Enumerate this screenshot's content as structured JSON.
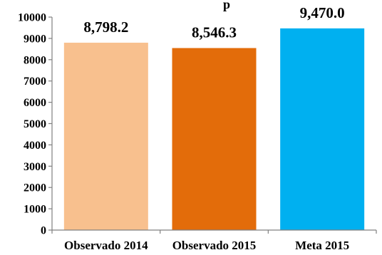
{
  "chart_data": {
    "type": "bar",
    "title": "p",
    "categories": [
      "Observado 2014",
      "Observado 2015",
      "Meta 2015"
    ],
    "values": [
      8798.2,
      8546.3,
      9470.0
    ],
    "data_labels": [
      "8,798.2",
      "8,546.3",
      "9,470.0"
    ],
    "bar_colors": [
      "#F8C08E",
      "#E36C0A",
      "#00B0F0"
    ],
    "ylim": [
      0,
      10000
    ],
    "yticks": [
      0,
      1000,
      2000,
      3000,
      4000,
      5000,
      6000,
      7000,
      8000,
      9000,
      10000
    ],
    "xlabel": "",
    "ylabel": "",
    "grid": false,
    "legend": "none"
  }
}
